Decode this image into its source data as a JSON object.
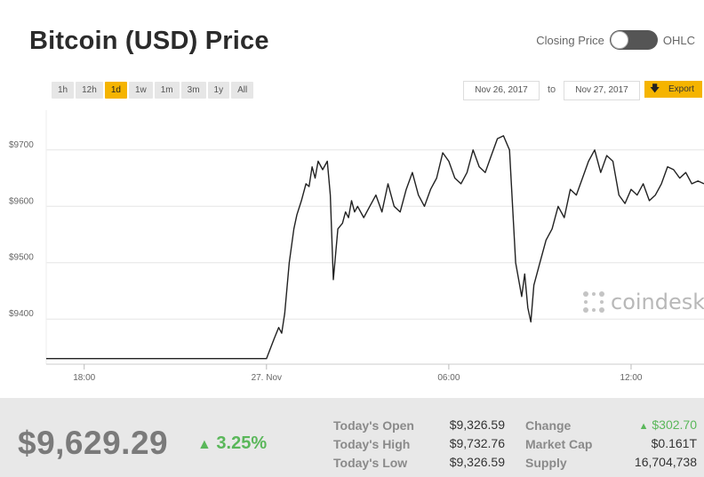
{
  "header": {
    "title": "Bitcoin (USD) Price",
    "toggle_left": "Closing Price",
    "toggle_right": "OHLC"
  },
  "ranges": [
    "1h",
    "12h",
    "1d",
    "1w",
    "1m",
    "3m",
    "1y",
    "All"
  ],
  "active_range": "1d",
  "date_from": "Nov 26, 2017",
  "date_to_label": "to",
  "date_to": "Nov 27, 2017",
  "export_label": "Export",
  "watermark": "coindesk",
  "colors": {
    "accent": "#f5b400",
    "up": "#5ab75a",
    "line": "#222222"
  },
  "chart_data": {
    "type": "line",
    "ylim": [
      9320,
      9780
    ],
    "yticks": [
      9400,
      9500,
      9600,
      9700
    ],
    "ytick_labels": [
      "$9400",
      "$9500",
      "$9600",
      "$9700"
    ],
    "xlim": [
      -7.25,
      14.4
    ],
    "xticks": [
      -6,
      0,
      6,
      12
    ],
    "xtick_labels": [
      "18:00",
      "27. Nov",
      "06:00",
      "12:00"
    ],
    "x_unit": "hours from 27 Nov 00:00",
    "grid": true,
    "series": [
      {
        "x": [
          -7.25,
          -2,
          0,
          0.25,
          0.4,
          0.5,
          0.6,
          0.75,
          0.9,
          1.0,
          1.15,
          1.3,
          1.4,
          1.5,
          1.6,
          1.7,
          1.85,
          2.0,
          2.1,
          2.2,
          2.35,
          2.5,
          2.6,
          2.7,
          2.8,
          2.9,
          3.0,
          3.2,
          3.4,
          3.6,
          3.8,
          4.0,
          4.2,
          4.4,
          4.6,
          4.8,
          5.0,
          5.2,
          5.4,
          5.6,
          5.8,
          6.0,
          6.2,
          6.4,
          6.6,
          6.8,
          7.0,
          7.2,
          7.4,
          7.6,
          7.8,
          8.0,
          8.2,
          8.4,
          8.5,
          8.6,
          8.7,
          8.8,
          9.0,
          9.2,
          9.4,
          9.6,
          9.8,
          10.0,
          10.2,
          10.4,
          10.6,
          10.8,
          11.0,
          11.2,
          11.4,
          11.6,
          11.8,
          12.0,
          12.2,
          12.4,
          12.6,
          12.8,
          13.0,
          13.2,
          13.4,
          13.6,
          13.8,
          14.0,
          14.2,
          14.4
        ],
        "y": [
          9330,
          9330,
          9330,
          9365,
          9385,
          9375,
          9410,
          9500,
          9560,
          9585,
          9610,
          9640,
          9635,
          9670,
          9650,
          9680,
          9665,
          9680,
          9620,
          9470,
          9560,
          9570,
          9590,
          9580,
          9610,
          9590,
          9600,
          9580,
          9600,
          9620,
          9590,
          9640,
          9600,
          9590,
          9630,
          9660,
          9620,
          9600,
          9630,
          9650,
          9695,
          9680,
          9650,
          9640,
          9660,
          9700,
          9670,
          9660,
          9690,
          9720,
          9725,
          9700,
          9500,
          9440,
          9480,
          9420,
          9395,
          9460,
          9500,
          9540,
          9560,
          9600,
          9580,
          9630,
          9620,
          9650,
          9680,
          9700,
          9660,
          9690,
          9680,
          9620,
          9605,
          9630,
          9620,
          9640,
          9610,
          9620,
          9640,
          9670,
          9665,
          9650,
          9660,
          9640,
          9645,
          9640
        ]
      }
    ]
  },
  "footer": {
    "price": "$9,629.29",
    "pct": "3.25%",
    "open_label": "Today's Open",
    "open_value": "$9,326.59",
    "high_label": "Today's High",
    "high_value": "$9,732.76",
    "low_label": "Today's Low",
    "low_value": "$9,326.59",
    "change_label": "Change",
    "change_value": "$302.70",
    "cap_label": "Market Cap",
    "cap_value": "$0.161T",
    "supply_label": "Supply",
    "supply_value": "16,704,738"
  }
}
